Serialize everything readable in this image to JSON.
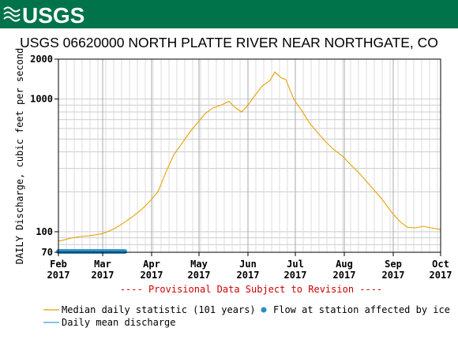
{
  "header": {
    "logo_text": "USGS"
  },
  "chart_data": {
    "type": "line",
    "title": "USGS 06620000 NORTH PLATTE RIVER NEAR NORTHGATE, CO",
    "ylabel": "DAILY Discharge, cubic feet per second",
    "xlabel": "",
    "y_scale": "log",
    "ylim": [
      70,
      2000
    ],
    "y_ticks": [
      {
        "value": 70,
        "label": "70"
      },
      {
        "value": 100,
        "label": "100"
      },
      {
        "value": 1000,
        "label": "1000"
      },
      {
        "value": 2000,
        "label": "2000"
      }
    ],
    "x_range": [
      "2017-02-01",
      "2017-10-01"
    ],
    "x_ticks": [
      {
        "date": "2017-02-01",
        "month": "Feb",
        "year": "2017"
      },
      {
        "date": "2017-03-01",
        "month": "Mar",
        "year": "2017"
      },
      {
        "date": "2017-04-01",
        "month": "Apr",
        "year": "2017"
      },
      {
        "date": "2017-05-01",
        "month": "May",
        "year": "2017"
      },
      {
        "date": "2017-06-01",
        "month": "Jun",
        "year": "2017"
      },
      {
        "date": "2017-07-01",
        "month": "Jul",
        "year": "2017"
      },
      {
        "date": "2017-08-01",
        "month": "Aug",
        "year": "2017"
      },
      {
        "date": "2017-09-01",
        "month": "Sep",
        "year": "2017"
      },
      {
        "date": "2017-10-01",
        "month": "Oct",
        "year": "2017"
      }
    ],
    "grid": true,
    "series": [
      {
        "name": "Median daily statistic (101 years)",
        "color": "#e8a200",
        "points": [
          [
            "2017-02-01",
            85
          ],
          [
            "2017-02-05",
            87
          ],
          [
            "2017-02-10",
            90
          ],
          [
            "2017-02-15",
            92
          ],
          [
            "2017-02-20",
            93
          ],
          [
            "2017-02-25",
            95
          ],
          [
            "2017-03-01",
            97
          ],
          [
            "2017-03-05",
            101
          ],
          [
            "2017-03-10",
            108
          ],
          [
            "2017-03-15",
            118
          ],
          [
            "2017-03-20",
            130
          ],
          [
            "2017-03-25",
            145
          ],
          [
            "2017-03-30",
            165
          ],
          [
            "2017-04-05",
            200
          ],
          [
            "2017-04-10",
            280
          ],
          [
            "2017-04-15",
            380
          ],
          [
            "2017-04-20",
            460
          ],
          [
            "2017-04-25",
            560
          ],
          [
            "2017-04-30",
            660
          ],
          [
            "2017-05-05",
            780
          ],
          [
            "2017-05-10",
            860
          ],
          [
            "2017-05-15",
            900
          ],
          [
            "2017-05-20",
            960
          ],
          [
            "2017-05-24",
            860
          ],
          [
            "2017-05-28",
            800
          ],
          [
            "2017-06-01",
            900
          ],
          [
            "2017-06-05",
            1050
          ],
          [
            "2017-06-10",
            1250
          ],
          [
            "2017-06-15",
            1380
          ],
          [
            "2017-06-18",
            1600
          ],
          [
            "2017-06-22",
            1450
          ],
          [
            "2017-06-25",
            1400
          ],
          [
            "2017-06-30",
            1000
          ],
          [
            "2017-07-05",
            820
          ],
          [
            "2017-07-10",
            660
          ],
          [
            "2017-07-15",
            560
          ],
          [
            "2017-07-20",
            480
          ],
          [
            "2017-07-25",
            420
          ],
          [
            "2017-07-31",
            370
          ],
          [
            "2017-08-05",
            320
          ],
          [
            "2017-08-10",
            280
          ],
          [
            "2017-08-15",
            240
          ],
          [
            "2017-08-20",
            205
          ],
          [
            "2017-08-25",
            175
          ],
          [
            "2017-08-31",
            140
          ],
          [
            "2017-09-05",
            120
          ],
          [
            "2017-09-10",
            108
          ],
          [
            "2017-09-15",
            107
          ],
          [
            "2017-09-20",
            110
          ],
          [
            "2017-09-25",
            107
          ],
          [
            "2017-10-01",
            104
          ]
        ]
      },
      {
        "name": "Daily mean discharge",
        "color": "#3aa0d8",
        "points": []
      },
      {
        "name": "Flow at station affected by ice",
        "color": "#2a8fc7",
        "marker": "dot",
        "date_range": [
          "2017-02-01",
          "2017-03-15"
        ],
        "value": 70
      }
    ],
    "annotation": "---- Provisional Data Subject to Revision ----",
    "annotation_color": "#cc0000",
    "legend_placement": "bottom"
  }
}
